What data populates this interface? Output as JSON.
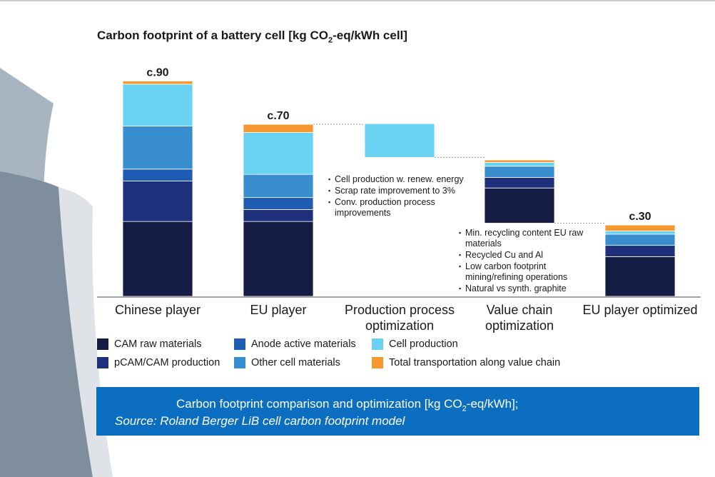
{
  "title": {
    "prefix": "Carbon footprint of a battery cell [kg CO",
    "sub": "2",
    "suffix": "-eq/kWh cell]"
  },
  "chart_data": {
    "type": "bar",
    "subtype": "stacked-waterfall",
    "unit": "kg CO2-eq/kWh cell",
    "categories": [
      "Chinese player",
      "EU player",
      "Production process optimization",
      "Value chain optimization",
      "EU player optimized"
    ],
    "category_lines": [
      [
        "Chinese player"
      ],
      [
        "EU player"
      ],
      [
        "Production process",
        "optimization"
      ],
      [
        "Value chain",
        "optimization"
      ],
      [
        "EU player optimized"
      ]
    ],
    "series": [
      {
        "name": "CAM raw materials",
        "color": "#141c43"
      },
      {
        "name": "pCAM/CAM production",
        "color": "#1e2f7c"
      },
      {
        "name": "Anode active materials",
        "color": "#1d5cb2"
      },
      {
        "name": "Other cell materials",
        "color": "#398ed0"
      },
      {
        "name": "Cell production",
        "color": "#69d1f2"
      },
      {
        "name": "Total transportation along value chain",
        "color": "#f7982f"
      }
    ],
    "bars": [
      {
        "category": "Chinese player",
        "base": 0,
        "segments": [
          31.3,
          16.9,
          5.0,
          18.0,
          17.5,
          1.3
        ],
        "total_label": "c.90"
      },
      {
        "category": "EU player",
        "base": 0,
        "segments": [
          31.3,
          5.0,
          5.0,
          9.7,
          17.5,
          3.4
        ],
        "total_label": "c.70"
      },
      {
        "category": "Production process optimization",
        "base": 58.1,
        "segments": [
          0,
          0,
          0,
          0,
          14.1,
          0
        ],
        "total_label": ""
      },
      {
        "category": "Value chain optimization",
        "base": 30.6,
        "segments": [
          14.7,
          4.4,
          0,
          4.7,
          1.6,
          1.0
        ],
        "total_label": ""
      },
      {
        "category": "EU player optimized",
        "base": 0,
        "segments": [
          16.6,
          4.7,
          0,
          4.7,
          1.3,
          2.5
        ],
        "total_label": "c.30"
      }
    ],
    "ylim": [
      0,
      100
    ],
    "legend": {
      "position": "bottom",
      "columns": 3
    }
  },
  "notes": {
    "production_process": [
      "Cell production w. renew. energy",
      "Scrap rate improvement to 3%",
      "Conv. production process improvements"
    ],
    "value_chain": [
      "Min. recycling content EU raw materials",
      "Recycled Cu and Al",
      "Low carbon footprint mining/refining operations",
      "Natural vs synth. graphite"
    ]
  },
  "caption": {
    "line1_prefix": "Carbon footprint comparison and optimization [kg CO",
    "line1_sub": "2",
    "line1_suffix": "-eq/kWh];",
    "line2": "Source: Roland Berger LiB cell carbon footprint model"
  },
  "colors": {
    "caption_bg": "#0b6ec0",
    "connector": "#9a9a9a",
    "axis": "#4a4a4a"
  }
}
